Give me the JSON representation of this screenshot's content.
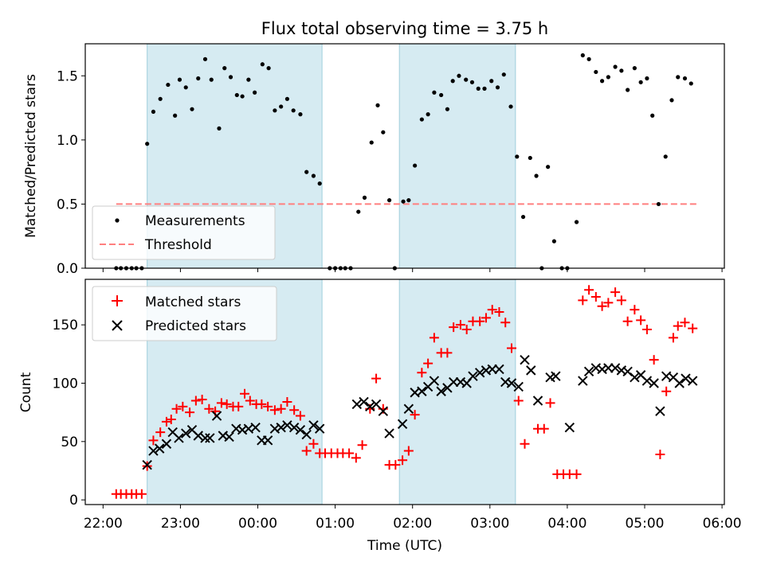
{
  "figure": {
    "title": "Flux total observing time = 3.75 h",
    "xlabel": "Time (UTC)",
    "x_ticks": [
      "22:00",
      "23:00",
      "00:00",
      "01:00",
      "02:00",
      "03:00",
      "04:00",
      "05:00",
      "06:00"
    ]
  },
  "chart_data": [
    {
      "type": "scatter",
      "panel": "top",
      "ylabel": "Matched/Predicted stars",
      "x_unit": "hours since 22:00 UTC",
      "xlim": [
        -0.23,
        8.03
      ],
      "ylim": [
        0,
        1.75
      ],
      "y_ticks": [
        "0.0",
        "0.5",
        "1.0",
        "1.5"
      ],
      "legend": {
        "position": "lower-left",
        "entries": [
          "Measurements",
          "Threshold"
        ]
      },
      "shaded_intervals": [
        [
          0.57,
          2.83
        ],
        [
          3.83,
          5.33
        ]
      ],
      "threshold": {
        "name": "Threshold",
        "y": 0.5,
        "x_range": [
          0.17,
          7.67
        ],
        "color": "#ff7f7f"
      },
      "series": [
        {
          "name": "Measurements",
          "color": "#000000",
          "points": [
            [
              0.17,
              0
            ],
            [
              0.23,
              0
            ],
            [
              0.3,
              0
            ],
            [
              0.37,
              0
            ],
            [
              0.43,
              0
            ],
            [
              0.5,
              0
            ],
            [
              0.57,
              0.97
            ],
            [
              0.65,
              1.22
            ],
            [
              0.74,
              1.32
            ],
            [
              0.84,
              1.43
            ],
            [
              0.93,
              1.19
            ],
            [
              0.99,
              1.47
            ],
            [
              1.07,
              1.41
            ],
            [
              1.15,
              1.24
            ],
            [
              1.23,
              1.48
            ],
            [
              1.32,
              1.63
            ],
            [
              1.4,
              1.47
            ],
            [
              1.5,
              1.09
            ],
            [
              1.57,
              1.56
            ],
            [
              1.65,
              1.49
            ],
            [
              1.73,
              1.35
            ],
            [
              1.8,
              1.34
            ],
            [
              1.88,
              1.47
            ],
            [
              1.96,
              1.37
            ],
            [
              2.06,
              1.59
            ],
            [
              2.14,
              1.56
            ],
            [
              2.22,
              1.23
            ],
            [
              2.3,
              1.26
            ],
            [
              2.38,
              1.32
            ],
            [
              2.46,
              1.23
            ],
            [
              2.55,
              1.2
            ],
            [
              2.63,
              0.75
            ],
            [
              2.72,
              0.72
            ],
            [
              2.8,
              0.66
            ],
            [
              2.93,
              0
            ],
            [
              3.0,
              0
            ],
            [
              3.07,
              0
            ],
            [
              3.13,
              0
            ],
            [
              3.2,
              0
            ],
            [
              3.3,
              0.44
            ],
            [
              3.38,
              0.55
            ],
            [
              3.47,
              0.98
            ],
            [
              3.55,
              1.27
            ],
            [
              3.62,
              1.06
            ],
            [
              3.7,
              0.53
            ],
            [
              3.77,
              0
            ],
            [
              3.88,
              0.52
            ],
            [
              3.95,
              0.53
            ],
            [
              4.03,
              0.8
            ],
            [
              4.12,
              1.16
            ],
            [
              4.2,
              1.2
            ],
            [
              4.28,
              1.37
            ],
            [
              4.37,
              1.35
            ],
            [
              4.45,
              1.24
            ],
            [
              4.52,
              1.46
            ],
            [
              4.6,
              1.5
            ],
            [
              4.69,
              1.47
            ],
            [
              4.77,
              1.45
            ],
            [
              4.85,
              1.4
            ],
            [
              4.93,
              1.4
            ],
            [
              5.02,
              1.46
            ],
            [
              5.1,
              1.41
            ],
            [
              5.18,
              1.51
            ],
            [
              5.27,
              1.26
            ],
            [
              5.35,
              0.87
            ],
            [
              5.43,
              0.4
            ],
            [
              5.52,
              0.86
            ],
            [
              5.6,
              0.72
            ],
            [
              5.67,
              0
            ],
            [
              5.75,
              0.79
            ],
            [
              5.83,
              0.21
            ],
            [
              5.93,
              0
            ],
            [
              6.0,
              0
            ],
            [
              6.12,
              0.36
            ],
            [
              6.2,
              1.66
            ],
            [
              6.28,
              1.63
            ],
            [
              6.37,
              1.53
            ],
            [
              6.45,
              1.46
            ],
            [
              6.53,
              1.49
            ],
            [
              6.62,
              1.57
            ],
            [
              6.7,
              1.54
            ],
            [
              6.78,
              1.39
            ],
            [
              6.87,
              1.56
            ],
            [
              6.95,
              1.45
            ],
            [
              7.03,
              1.48
            ],
            [
              7.1,
              1.19
            ],
            [
              7.18,
              0.5
            ],
            [
              7.27,
              0.87
            ],
            [
              7.35,
              1.31
            ],
            [
              7.43,
              1.49
            ],
            [
              7.52,
              1.48
            ],
            [
              7.6,
              1.44
            ]
          ]
        }
      ]
    },
    {
      "type": "scatter",
      "panel": "bottom",
      "ylabel": "Count",
      "x_unit": "hours since 22:00 UTC",
      "xlim": [
        -0.23,
        8.03
      ],
      "ylim": [
        -4,
        189
      ],
      "y_ticks": [
        "0",
        "50",
        "100",
        "150"
      ],
      "legend": {
        "position": "upper-left",
        "entries": [
          "Matched stars",
          "Predicted stars"
        ]
      },
      "shaded_intervals": [
        [
          0.57,
          2.83
        ],
        [
          3.83,
          5.33
        ]
      ],
      "series": [
        {
          "name": "Matched stars",
          "marker": "+",
          "color": "#ff0000",
          "points": [
            [
              0.17,
              5
            ],
            [
              0.23,
              5
            ],
            [
              0.3,
              5
            ],
            [
              0.37,
              5
            ],
            [
              0.43,
              5
            ],
            [
              0.5,
              5
            ],
            [
              0.57,
              29
            ],
            [
              0.65,
              51
            ],
            [
              0.74,
              58
            ],
            [
              0.82,
              67
            ],
            [
              0.88,
              69
            ],
            [
              0.95,
              78
            ],
            [
              1.03,
              80
            ],
            [
              1.12,
              75
            ],
            [
              1.2,
              85
            ],
            [
              1.28,
              86
            ],
            [
              1.37,
              78
            ],
            [
              1.45,
              76
            ],
            [
              1.53,
              83
            ],
            [
              1.6,
              82
            ],
            [
              1.68,
              80
            ],
            [
              1.75,
              80
            ],
            [
              1.83,
              91
            ],
            [
              1.9,
              85
            ],
            [
              1.98,
              82
            ],
            [
              2.05,
              82
            ],
            [
              2.13,
              80
            ],
            [
              2.22,
              77
            ],
            [
              2.3,
              78
            ],
            [
              2.38,
              84
            ],
            [
              2.47,
              77
            ],
            [
              2.55,
              72
            ],
            [
              2.63,
              42
            ],
            [
              2.72,
              48
            ],
            [
              2.8,
              40
            ],
            [
              2.87,
              40
            ],
            [
              2.95,
              40
            ],
            [
              3.03,
              40
            ],
            [
              3.1,
              40
            ],
            [
              3.18,
              40
            ],
            [
              3.27,
              36
            ],
            [
              3.35,
              47
            ],
            [
              3.45,
              78
            ],
            [
              3.53,
              104
            ],
            [
              3.62,
              78
            ],
            [
              3.7,
              30
            ],
            [
              3.78,
              30
            ],
            [
              3.87,
              34
            ],
            [
              3.95,
              42
            ],
            [
              4.03,
              73
            ],
            [
              4.12,
              109
            ],
            [
              4.2,
              117
            ],
            [
              4.28,
              139
            ],
            [
              4.37,
              126
            ],
            [
              4.45,
              126
            ],
            [
              4.53,
              148
            ],
            [
              4.62,
              150
            ],
            [
              4.7,
              146
            ],
            [
              4.78,
              153
            ],
            [
              4.87,
              153
            ],
            [
              4.95,
              156
            ],
            [
              5.03,
              163
            ],
            [
              5.12,
              161
            ],
            [
              5.2,
              152
            ],
            [
              5.28,
              130
            ],
            [
              5.37,
              85
            ],
            [
              5.45,
              48
            ],
            [
              5.62,
              61
            ],
            [
              5.7,
              61
            ],
            [
              5.78,
              83
            ],
            [
              5.87,
              22
            ],
            [
              5.95,
              22
            ],
            [
              6.03,
              22
            ],
            [
              6.12,
              22
            ],
            [
              6.2,
              171
            ],
            [
              6.28,
              180
            ],
            [
              6.37,
              174
            ],
            [
              6.45,
              166
            ],
            [
              6.53,
              169
            ],
            [
              6.62,
              178
            ],
            [
              6.7,
              171
            ],
            [
              6.78,
              153
            ],
            [
              6.87,
              163
            ],
            [
              6.95,
              154
            ],
            [
              7.03,
              146
            ],
            [
              7.12,
              120
            ],
            [
              7.2,
              39
            ],
            [
              7.28,
              93
            ],
            [
              7.37,
              139
            ],
            [
              7.43,
              149
            ],
            [
              7.52,
              152
            ],
            [
              7.62,
              147
            ]
          ]
        },
        {
          "name": "Predicted stars",
          "marker": "x",
          "color": "#000000",
          "points": [
            [
              0.57,
              30
            ],
            [
              0.65,
              42
            ],
            [
              0.73,
              44
            ],
            [
              0.82,
              48
            ],
            [
              0.9,
              58
            ],
            [
              0.98,
              53
            ],
            [
              1.07,
              57
            ],
            [
              1.15,
              60
            ],
            [
              1.23,
              55
            ],
            [
              1.32,
              53
            ],
            [
              1.38,
              53
            ],
            [
              1.47,
              72
            ],
            [
              1.55,
              55
            ],
            [
              1.63,
              54
            ],
            [
              1.72,
              61
            ],
            [
              1.8,
              60
            ],
            [
              1.88,
              61
            ],
            [
              1.97,
              62
            ],
            [
              2.05,
              51
            ],
            [
              2.13,
              51
            ],
            [
              2.22,
              61
            ],
            [
              2.3,
              62
            ],
            [
              2.38,
              64
            ],
            [
              2.47,
              62
            ],
            [
              2.55,
              60
            ],
            [
              2.63,
              56
            ],
            [
              2.72,
              64
            ],
            [
              2.8,
              61
            ],
            [
              3.28,
              82
            ],
            [
              3.37,
              84
            ],
            [
              3.45,
              80
            ],
            [
              3.53,
              82
            ],
            [
              3.62,
              76
            ],
            [
              3.7,
              57
            ],
            [
              3.87,
              65
            ],
            [
              3.95,
              78
            ],
            [
              4.03,
              92
            ],
            [
              4.12,
              93
            ],
            [
              4.2,
              97
            ],
            [
              4.28,
              102
            ],
            [
              4.37,
              93
            ],
            [
              4.45,
              96
            ],
            [
              4.53,
              101
            ],
            [
              4.62,
              101
            ],
            [
              4.7,
              100
            ],
            [
              4.78,
              106
            ],
            [
              4.87,
              109
            ],
            [
              4.95,
              111
            ],
            [
              5.03,
              112
            ],
            [
              5.12,
              112
            ],
            [
              5.2,
              101
            ],
            [
              5.28,
              100
            ],
            [
              5.37,
              97
            ],
            [
              5.45,
              120
            ],
            [
              5.53,
              111
            ],
            [
              5.62,
              85
            ],
            [
              5.78,
              105
            ],
            [
              5.85,
              106
            ],
            [
              6.03,
              62
            ],
            [
              6.2,
              102
            ],
            [
              6.28,
              110
            ],
            [
              6.37,
              113
            ],
            [
              6.45,
              112
            ],
            [
              6.53,
              113
            ],
            [
              6.62,
              113
            ],
            [
              6.7,
              111
            ],
            [
              6.78,
              110
            ],
            [
              6.87,
              105
            ],
            [
              6.95,
              107
            ],
            [
              7.03,
              102
            ],
            [
              7.12,
              100
            ],
            [
              7.2,
              76
            ],
            [
              7.28,
              106
            ],
            [
              7.37,
              105
            ],
            [
              7.45,
              100
            ],
            [
              7.53,
              104
            ],
            [
              7.62,
              102
            ]
          ]
        }
      ]
    }
  ]
}
